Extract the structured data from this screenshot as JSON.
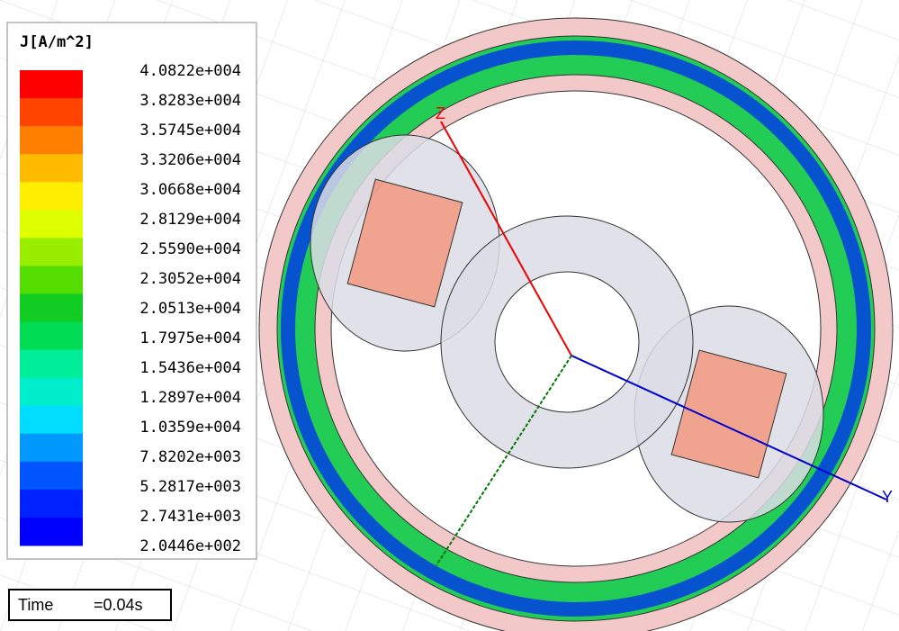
{
  "legend": {
    "title": "J[A/m^2]",
    "labels": [
      "4.0822e+004",
      "3.8283e+004",
      "3.5745e+004",
      "3.3206e+004",
      "3.0668e+004",
      "2.8129e+004",
      "2.5590e+004",
      "2.3052e+004",
      "2.0513e+004",
      "1.7975e+004",
      "1.5436e+004",
      "1.2897e+004",
      "1.0359e+004",
      "7.8202e+003",
      "5.2817e+003",
      "2.7431e+003",
      "2.0446e+002"
    ],
    "colors": [
      "#ff0000",
      "#ff4400",
      "#ff8000",
      "#ffbb00",
      "#ffee00",
      "#ddff00",
      "#99ee00",
      "#55dd00",
      "#11cc22",
      "#00dd55",
      "#00ee99",
      "#00eecc",
      "#00ddff",
      "#0099ff",
      "#0055ff",
      "#0022ff",
      "#0000ff"
    ]
  },
  "time": {
    "label": "Time",
    "value": "=0.04s"
  },
  "axes": {
    "z": "Z",
    "y": "Y"
  }
}
